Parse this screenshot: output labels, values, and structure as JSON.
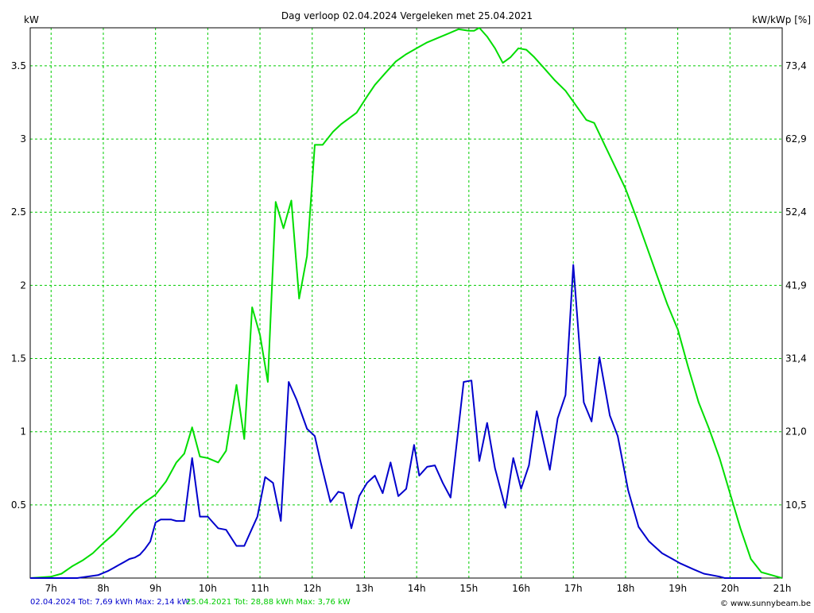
{
  "chart_data": {
    "type": "line",
    "title": "Dag  verloop 02.04.2024   Vergeleken met 25.04.2021",
    "ylabel_left": "kW",
    "ylabel_right": "kW/kWp [%]",
    "x_ticks": [
      "7h",
      "8h",
      "9h",
      "10h",
      "11h",
      "12h",
      "13h",
      "14h",
      "15h",
      "16h",
      "17h",
      "18h",
      "19h",
      "20h",
      "21h"
    ],
    "y_ticks_left": [
      "0.5",
      "1",
      "1.5",
      "2",
      "2.5",
      "3",
      "3.5"
    ],
    "y_ticks_right": [
      "10,5",
      "21,0",
      "31,4",
      "41,9",
      "52,4",
      "62,9",
      "73,4"
    ],
    "ylim": [
      0,
      3.76
    ],
    "xlim": [
      6.6,
      21.0
    ],
    "grid": true,
    "colors": {
      "series_2024": "#0000cc",
      "series_2021": "#00dd00",
      "grid": "#00cc00"
    },
    "series": [
      {
        "name": "02.04.2024",
        "x": [
          6.6,
          7.5,
          7.9,
          8.1,
          8.2,
          8.3,
          8.4,
          8.5,
          8.6,
          8.7,
          8.8,
          8.9,
          9.0,
          9.1,
          9.2,
          9.3,
          9.4,
          9.55,
          9.7,
          9.85,
          10.0,
          10.1,
          10.2,
          10.35,
          10.55,
          10.7,
          10.85,
          10.95,
          11.1,
          11.25,
          11.4,
          11.55,
          11.7,
          11.9,
          12.05,
          12.15,
          12.35,
          12.5,
          12.6,
          12.75,
          12.9,
          13.05,
          13.2,
          13.35,
          13.5,
          13.65,
          13.8,
          13.95,
          14.05,
          14.2,
          14.35,
          14.5,
          14.65,
          14.9,
          15.05,
          15.2,
          15.35,
          15.5,
          15.7,
          15.85,
          16.0,
          16.15,
          16.3,
          16.55,
          16.7,
          16.85,
          17.0,
          17.2,
          17.35,
          17.5,
          17.7,
          17.85,
          18.05,
          18.25,
          18.45,
          18.7,
          18.9,
          19.05,
          19.3,
          19.5,
          19.8,
          19.9,
          20.0,
          20.2,
          20.4,
          20.6
        ],
        "values": [
          0,
          0,
          0.02,
          0.05,
          0.07,
          0.09,
          0.11,
          0.13,
          0.14,
          0.16,
          0.2,
          0.25,
          0.38,
          0.4,
          0.4,
          0.4,
          0.39,
          0.39,
          0.82,
          0.42,
          0.42,
          0.38,
          0.34,
          0.33,
          0.22,
          0.22,
          0.34,
          0.42,
          0.69,
          0.65,
          0.39,
          1.34,
          1.22,
          1.02,
          0.97,
          0.81,
          0.52,
          0.59,
          0.58,
          0.34,
          0.56,
          0.65,
          0.7,
          0.58,
          0.79,
          0.56,
          0.61,
          0.91,
          0.7,
          0.76,
          0.77,
          0.65,
          0.55,
          1.34,
          1.35,
          0.8,
          1.06,
          0.75,
          0.48,
          0.82,
          0.61,
          0.77,
          1.14,
          0.74,
          1.09,
          1.25,
          2.14,
          1.2,
          1.07,
          1.51,
          1.11,
          0.97,
          0.6,
          0.35,
          0.25,
          0.17,
          0.13,
          0.1,
          0.06,
          0.03,
          0.01,
          0,
          0,
          0,
          0,
          0
        ]
      },
      {
        "name": "25.04.2021",
        "x": [
          6.6,
          7.0,
          7.2,
          7.4,
          7.6,
          7.8,
          8.0,
          8.2,
          8.4,
          8.6,
          8.8,
          9.0,
          9.2,
          9.4,
          9.55,
          9.7,
          9.85,
          10.0,
          10.2,
          10.35,
          10.55,
          10.7,
          10.85,
          11.0,
          11.15,
          11.3,
          11.45,
          11.6,
          11.75,
          11.9,
          12.05,
          12.2,
          12.4,
          12.55,
          12.7,
          12.85,
          13.05,
          13.2,
          13.4,
          13.6,
          13.8,
          14.0,
          14.2,
          14.4,
          14.6,
          14.8,
          15.0,
          15.1,
          15.2,
          15.35,
          15.5,
          15.65,
          15.8,
          15.95,
          16.1,
          16.25,
          16.45,
          16.65,
          16.85,
          17.05,
          17.25,
          17.4,
          17.6,
          17.8,
          18.0,
          18.2,
          18.4,
          18.6,
          18.8,
          19.0,
          19.2,
          19.4,
          19.6,
          19.8,
          20.0,
          20.2,
          20.4,
          20.6,
          20.8,
          20.9,
          21.0
        ],
        "values": [
          0,
          0.01,
          0.03,
          0.08,
          0.12,
          0.17,
          0.24,
          0.3,
          0.38,
          0.46,
          0.52,
          0.57,
          0.66,
          0.79,
          0.85,
          1.03,
          0.83,
          0.82,
          0.79,
          0.87,
          1.32,
          0.95,
          1.85,
          1.66,
          1.34,
          2.57,
          2.39,
          2.58,
          1.91,
          2.2,
          2.96,
          2.96,
          3.05,
          3.1,
          3.14,
          3.18,
          3.29,
          3.37,
          3.45,
          3.53,
          3.58,
          3.62,
          3.66,
          3.69,
          3.72,
          3.75,
          3.74,
          3.74,
          3.76,
          3.7,
          3.62,
          3.52,
          3.56,
          3.62,
          3.61,
          3.56,
          3.48,
          3.4,
          3.33,
          3.23,
          3.13,
          3.11,
          2.96,
          2.81,
          2.66,
          2.47,
          2.27,
          2.07,
          1.87,
          1.7,
          1.44,
          1.2,
          1.02,
          0.82,
          0.58,
          0.34,
          0.13,
          0.04,
          0.02,
          0.01,
          0
        ]
      }
    ],
    "footer": {
      "label_2024": "02.04.2024 Tot: 7,69 kWh Max: 2,14 kW",
      "label_2021": "25.04.2021 Tot: 28,88 kWh Max: 3,76 kW",
      "copyright": "© www.sunnybeam.be"
    }
  }
}
